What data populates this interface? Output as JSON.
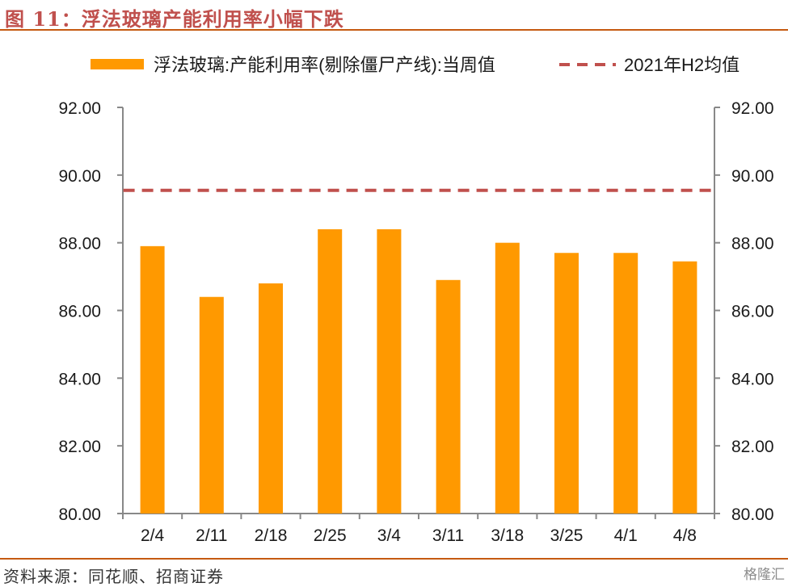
{
  "header": {
    "title": "图 11：浮法玻璃产能利用率小幅下跌"
  },
  "footer": {
    "source": "资料来源：同花顺、招商证券",
    "watermark": "格隆汇"
  },
  "chart_data": {
    "type": "bar",
    "categories": [
      "2/4",
      "2/11",
      "2/18",
      "2/25",
      "3/4",
      "3/11",
      "3/18",
      "3/25",
      "4/1",
      "4/8"
    ],
    "series": [
      {
        "name": "浮法玻璃:产能利用率(剔除僵尸产线):当周值",
        "type": "bar",
        "color": "#ff9900",
        "values": [
          87.9,
          86.4,
          86.8,
          88.4,
          88.4,
          86.9,
          88.0,
          87.7,
          87.7,
          87.45
        ]
      },
      {
        "name": "2021年H2均值",
        "type": "dashed-line",
        "color": "#c0504d",
        "values": [
          89.55,
          89.55,
          89.55,
          89.55,
          89.55,
          89.55,
          89.55,
          89.55,
          89.55,
          89.55
        ]
      }
    ],
    "ylim": [
      80,
      92
    ],
    "yticks": [
      "80.00",
      "82.00",
      "84.00",
      "86.00",
      "88.00",
      "90.00",
      "92.00"
    ],
    "y_right_ticks": [
      "80.00",
      "82.00",
      "84.00",
      "86.00",
      "88.00",
      "90.00",
      "92.00"
    ],
    "legend_position": "top",
    "grid": false
  }
}
